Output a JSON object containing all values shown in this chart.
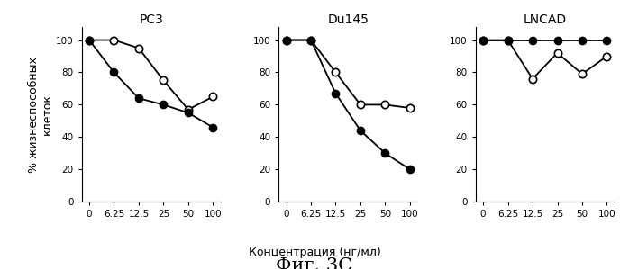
{
  "x_indices": [
    0,
    1,
    2,
    3,
    4,
    5
  ],
  "x_tick_labels": [
    "0",
    "6.25",
    "12.5",
    "25",
    "50",
    "100"
  ],
  "PC3": {
    "title": "PC3",
    "open_circle": [
      100,
      100,
      95,
      75,
      57,
      65
    ],
    "filled_circle": [
      100,
      80,
      64,
      60,
      55,
      46
    ]
  },
  "Du145": {
    "title": "Du145",
    "open_circle": [
      100,
      100,
      80,
      60,
      60,
      58
    ],
    "filled_circle": [
      100,
      100,
      67,
      44,
      30,
      20
    ]
  },
  "LNCAD": {
    "title": "LNCAD",
    "open_circle": [
      100,
      100,
      76,
      92,
      79,
      90
    ],
    "filled_circle": [
      100,
      100,
      100,
      100,
      100,
      100
    ]
  },
  "ylabel": "% жизнеспособных\nклеток",
  "xlabel": "Концентрация (нг/мл)",
  "fig_label": "Фиг. 3С",
  "ylim": [
    0,
    108
  ],
  "yticks": [
    0,
    20,
    40,
    60,
    80,
    100
  ],
  "open_circle_color": "white",
  "open_circle_edge": "black",
  "filled_circle_color": "black",
  "line_color": "black",
  "marker_size": 6,
  "line_width": 1.3,
  "font_size_title": 10,
  "font_size_ticks": 7.5,
  "font_size_label": 9,
  "font_size_xlabel": 9,
  "font_size_fig_label": 15
}
